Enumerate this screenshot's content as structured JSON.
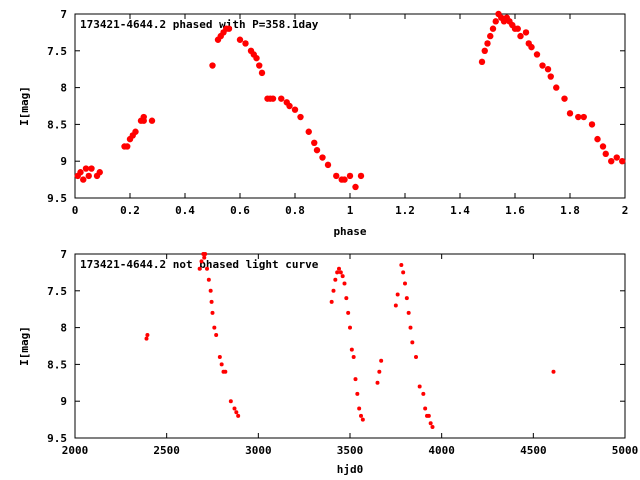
{
  "chart_data": [
    {
      "type": "scatter",
      "title": "173421-4644.2 phased with P=358.1day",
      "xlabel": "phase",
      "ylabel": "I[mag]",
      "xlim": [
        0,
        2
      ],
      "ylim": [
        9.5,
        7
      ],
      "y_inverted": true,
      "xticks": [
        "0",
        "0.2",
        "0.4",
        "0.6",
        "0.8",
        "1",
        "1.2",
        "1.4",
        "1.6",
        "1.8",
        "2"
      ],
      "yticks": [
        "7",
        "7.5",
        "8",
        "8.5",
        "9",
        "9.5"
      ],
      "grid": false,
      "marker_color": "#ff0000",
      "x": [
        0.01,
        0.02,
        0.03,
        0.04,
        0.05,
        0.06,
        0.08,
        0.09,
        0.18,
        0.19,
        0.2,
        0.21,
        0.22,
        0.24,
        0.25,
        0.25,
        0.28,
        0.5,
        0.52,
        0.53,
        0.54,
        0.55,
        0.56,
        0.6,
        0.62,
        0.64,
        0.65,
        0.66,
        0.67,
        0.68,
        0.7,
        0.71,
        0.72,
        0.75,
        0.77,
        0.78,
        0.8,
        0.82,
        0.85,
        0.87,
        0.88,
        0.9,
        0.92,
        0.95,
        0.97,
        0.98,
        1.0,
        1.02,
        1.04,
        1.48,
        1.49,
        1.5,
        1.51,
        1.52,
        1.53,
        1.54,
        1.55,
        1.56,
        1.57,
        1.58,
        1.59,
        1.6,
        1.61,
        1.62,
        1.64,
        1.65,
        1.66,
        1.68,
        1.7,
        1.72,
        1.73,
        1.75,
        1.78,
        1.8,
        1.83,
        1.85,
        1.88,
        1.9,
        1.92,
        1.93,
        1.95,
        1.97,
        1.99
      ],
      "y": [
        9.2,
        9.15,
        9.25,
        9.1,
        9.2,
        9.1,
        9.2,
        9.15,
        8.8,
        8.8,
        8.7,
        8.65,
        8.6,
        8.45,
        8.45,
        8.4,
        8.45,
        7.7,
        7.35,
        7.3,
        7.25,
        7.2,
        7.2,
        7.35,
        7.4,
        7.5,
        7.55,
        7.6,
        7.7,
        7.8,
        8.15,
        8.15,
        8.15,
        8.15,
        8.2,
        8.25,
        8.3,
        8.4,
        8.6,
        8.75,
        8.85,
        8.95,
        9.05,
        9.2,
        9.25,
        9.25,
        9.2,
        9.35,
        9.2,
        7.65,
        7.5,
        7.4,
        7.3,
        7.2,
        7.1,
        7.0,
        7.05,
        7.1,
        7.05,
        7.1,
        7.15,
        7.2,
        7.2,
        7.3,
        7.25,
        7.4,
        7.45,
        7.55,
        7.7,
        7.75,
        7.85,
        8.0,
        8.15,
        8.35,
        8.4,
        8.4,
        8.5,
        8.7,
        8.8,
        8.9,
        9.0,
        8.95,
        9.0
      ]
    },
    {
      "type": "scatter",
      "title": "173421-4644.2 not phased light curve",
      "xlabel": "hjd0",
      "ylabel": "I[mag]",
      "xlim": [
        2000,
        5000
      ],
      "ylim": [
        9.5,
        7
      ],
      "y_inverted": true,
      "xticks": [
        "2000",
        "2500",
        "3000",
        "3500",
        "4000",
        "4500",
        "5000"
      ],
      "yticks": [
        "7",
        "7.5",
        "8",
        "8.5",
        "9",
        "9.5"
      ],
      "grid": false,
      "marker_color": "#ff0000",
      "x": [
        2390,
        2395,
        2680,
        2690,
        2700,
        2705,
        2710,
        2720,
        2730,
        2740,
        2745,
        2750,
        2760,
        2770,
        2790,
        2800,
        2810,
        2820,
        2850,
        2870,
        2880,
        2890,
        3400,
        3410,
        3420,
        3430,
        3440,
        3450,
        3460,
        3470,
        3480,
        3490,
        3500,
        3510,
        3520,
        3530,
        3540,
        3550,
        3560,
        3570,
        3650,
        3660,
        3670,
        3750,
        3760,
        3780,
        3790,
        3800,
        3810,
        3820,
        3830,
        3840,
        3860,
        3880,
        3900,
        3910,
        3920,
        3930,
        3940,
        3950,
        4610
      ],
      "y": [
        8.15,
        8.1,
        7.2,
        7.1,
        7.0,
        7.05,
        7.0,
        7.2,
        7.35,
        7.5,
        7.65,
        7.8,
        8.0,
        8.1,
        8.4,
        8.5,
        8.6,
        8.6,
        9.0,
        9.1,
        9.15,
        9.2,
        7.65,
        7.5,
        7.35,
        7.25,
        7.2,
        7.25,
        7.3,
        7.4,
        7.6,
        7.8,
        8.0,
        8.3,
        8.4,
        8.7,
        8.9,
        9.1,
        9.2,
        9.25,
        8.75,
        8.6,
        8.45,
        7.7,
        7.55,
        7.15,
        7.25,
        7.4,
        7.6,
        7.8,
        8.0,
        8.2,
        8.4,
        8.8,
        8.9,
        9.1,
        9.2,
        9.2,
        9.3,
        9.35,
        8.6
      ]
    }
  ]
}
